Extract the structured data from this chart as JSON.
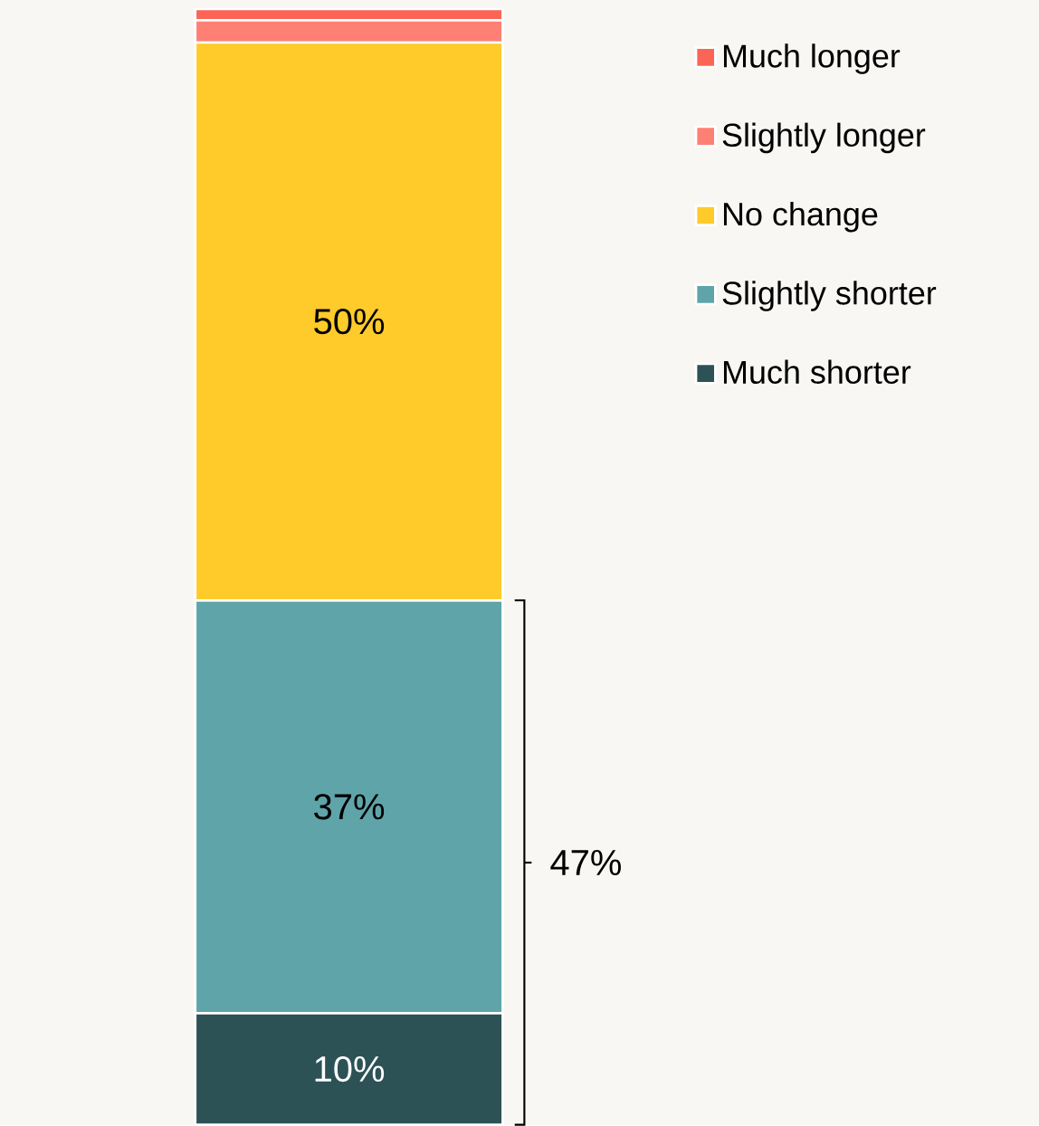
{
  "chart_data": {
    "type": "bar",
    "stacked": true,
    "relative": false,
    "categories": [
      null
    ],
    "series": [
      {
        "name": "Much shorter",
        "color": "#2d5256",
        "values": [
          10
        ],
        "value_labels": [
          "10%"
        ]
      },
      {
        "name": "Slightly shorter",
        "color": "#5fa4a9",
        "values": [
          37
        ],
        "value_labels": [
          "37%"
        ]
      },
      {
        "name": "No change",
        "color": "#ffcb2b",
        "values": [
          50
        ],
        "value_labels": [
          "50%"
        ]
      },
      {
        "name": "Slightly longer",
        "color": "#fe7f74",
        "values": [
          2
        ],
        "value_labels": [
          null
        ]
      },
      {
        "name": "Much longer",
        "color": "#fb6556",
        "values": [
          1
        ],
        "value_labels": [
          null
        ]
      }
    ],
    "tick_labels": false,
    "legend": "top right",
    "annotations": [
      "47%"
    ]
  }
}
